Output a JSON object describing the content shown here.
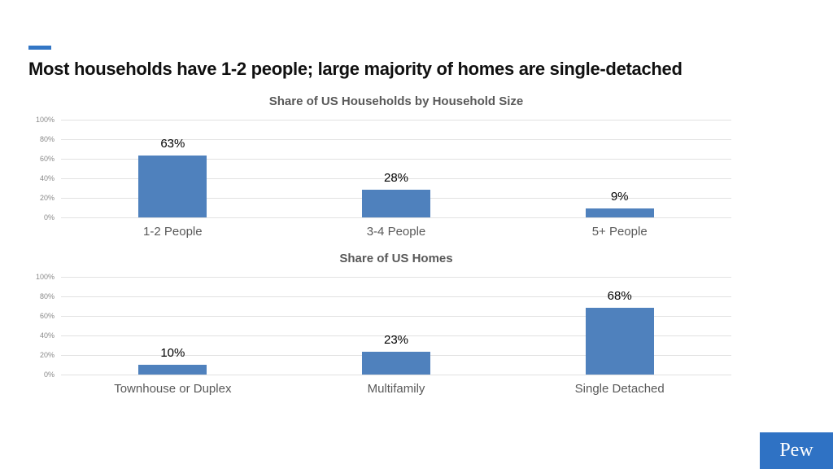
{
  "slide": {
    "title": "Most households have 1-2 people; large majority of homes are single-detached",
    "accent_color": "#3376c5",
    "bar_color": "#4f81bd",
    "gridline_color": "#e2e2e2",
    "logo": {
      "text": "Pew",
      "background_color": "#2f72c4",
      "text_color": "#ffffff"
    }
  },
  "chart_data": [
    {
      "type": "bar",
      "title": "Share of US Households by Household Size",
      "categories": [
        "1-2 People",
        "3-4 People",
        "5+ People"
      ],
      "values": [
        63,
        28,
        9
      ],
      "value_labels": [
        "63%",
        "28%",
        "9%"
      ],
      "xlabel": "",
      "ylabel": "",
      "ylim": [
        0,
        100
      ],
      "yticks": [
        "100%",
        "80%",
        "60%",
        "40%",
        "20%",
        "0%"
      ],
      "grid": true,
      "legend": false
    },
    {
      "type": "bar",
      "title": "Share of US Homes",
      "categories": [
        "Townhouse or Duplex",
        "Multifamily",
        "Single Detached"
      ],
      "values": [
        10,
        23,
        68
      ],
      "value_labels": [
        "10%",
        "23%",
        "68%"
      ],
      "xlabel": "",
      "ylabel": "",
      "ylim": [
        0,
        100
      ],
      "yticks": [
        "100%",
        "80%",
        "60%",
        "40%",
        "20%",
        "0%"
      ],
      "grid": true,
      "legend": false
    }
  ]
}
